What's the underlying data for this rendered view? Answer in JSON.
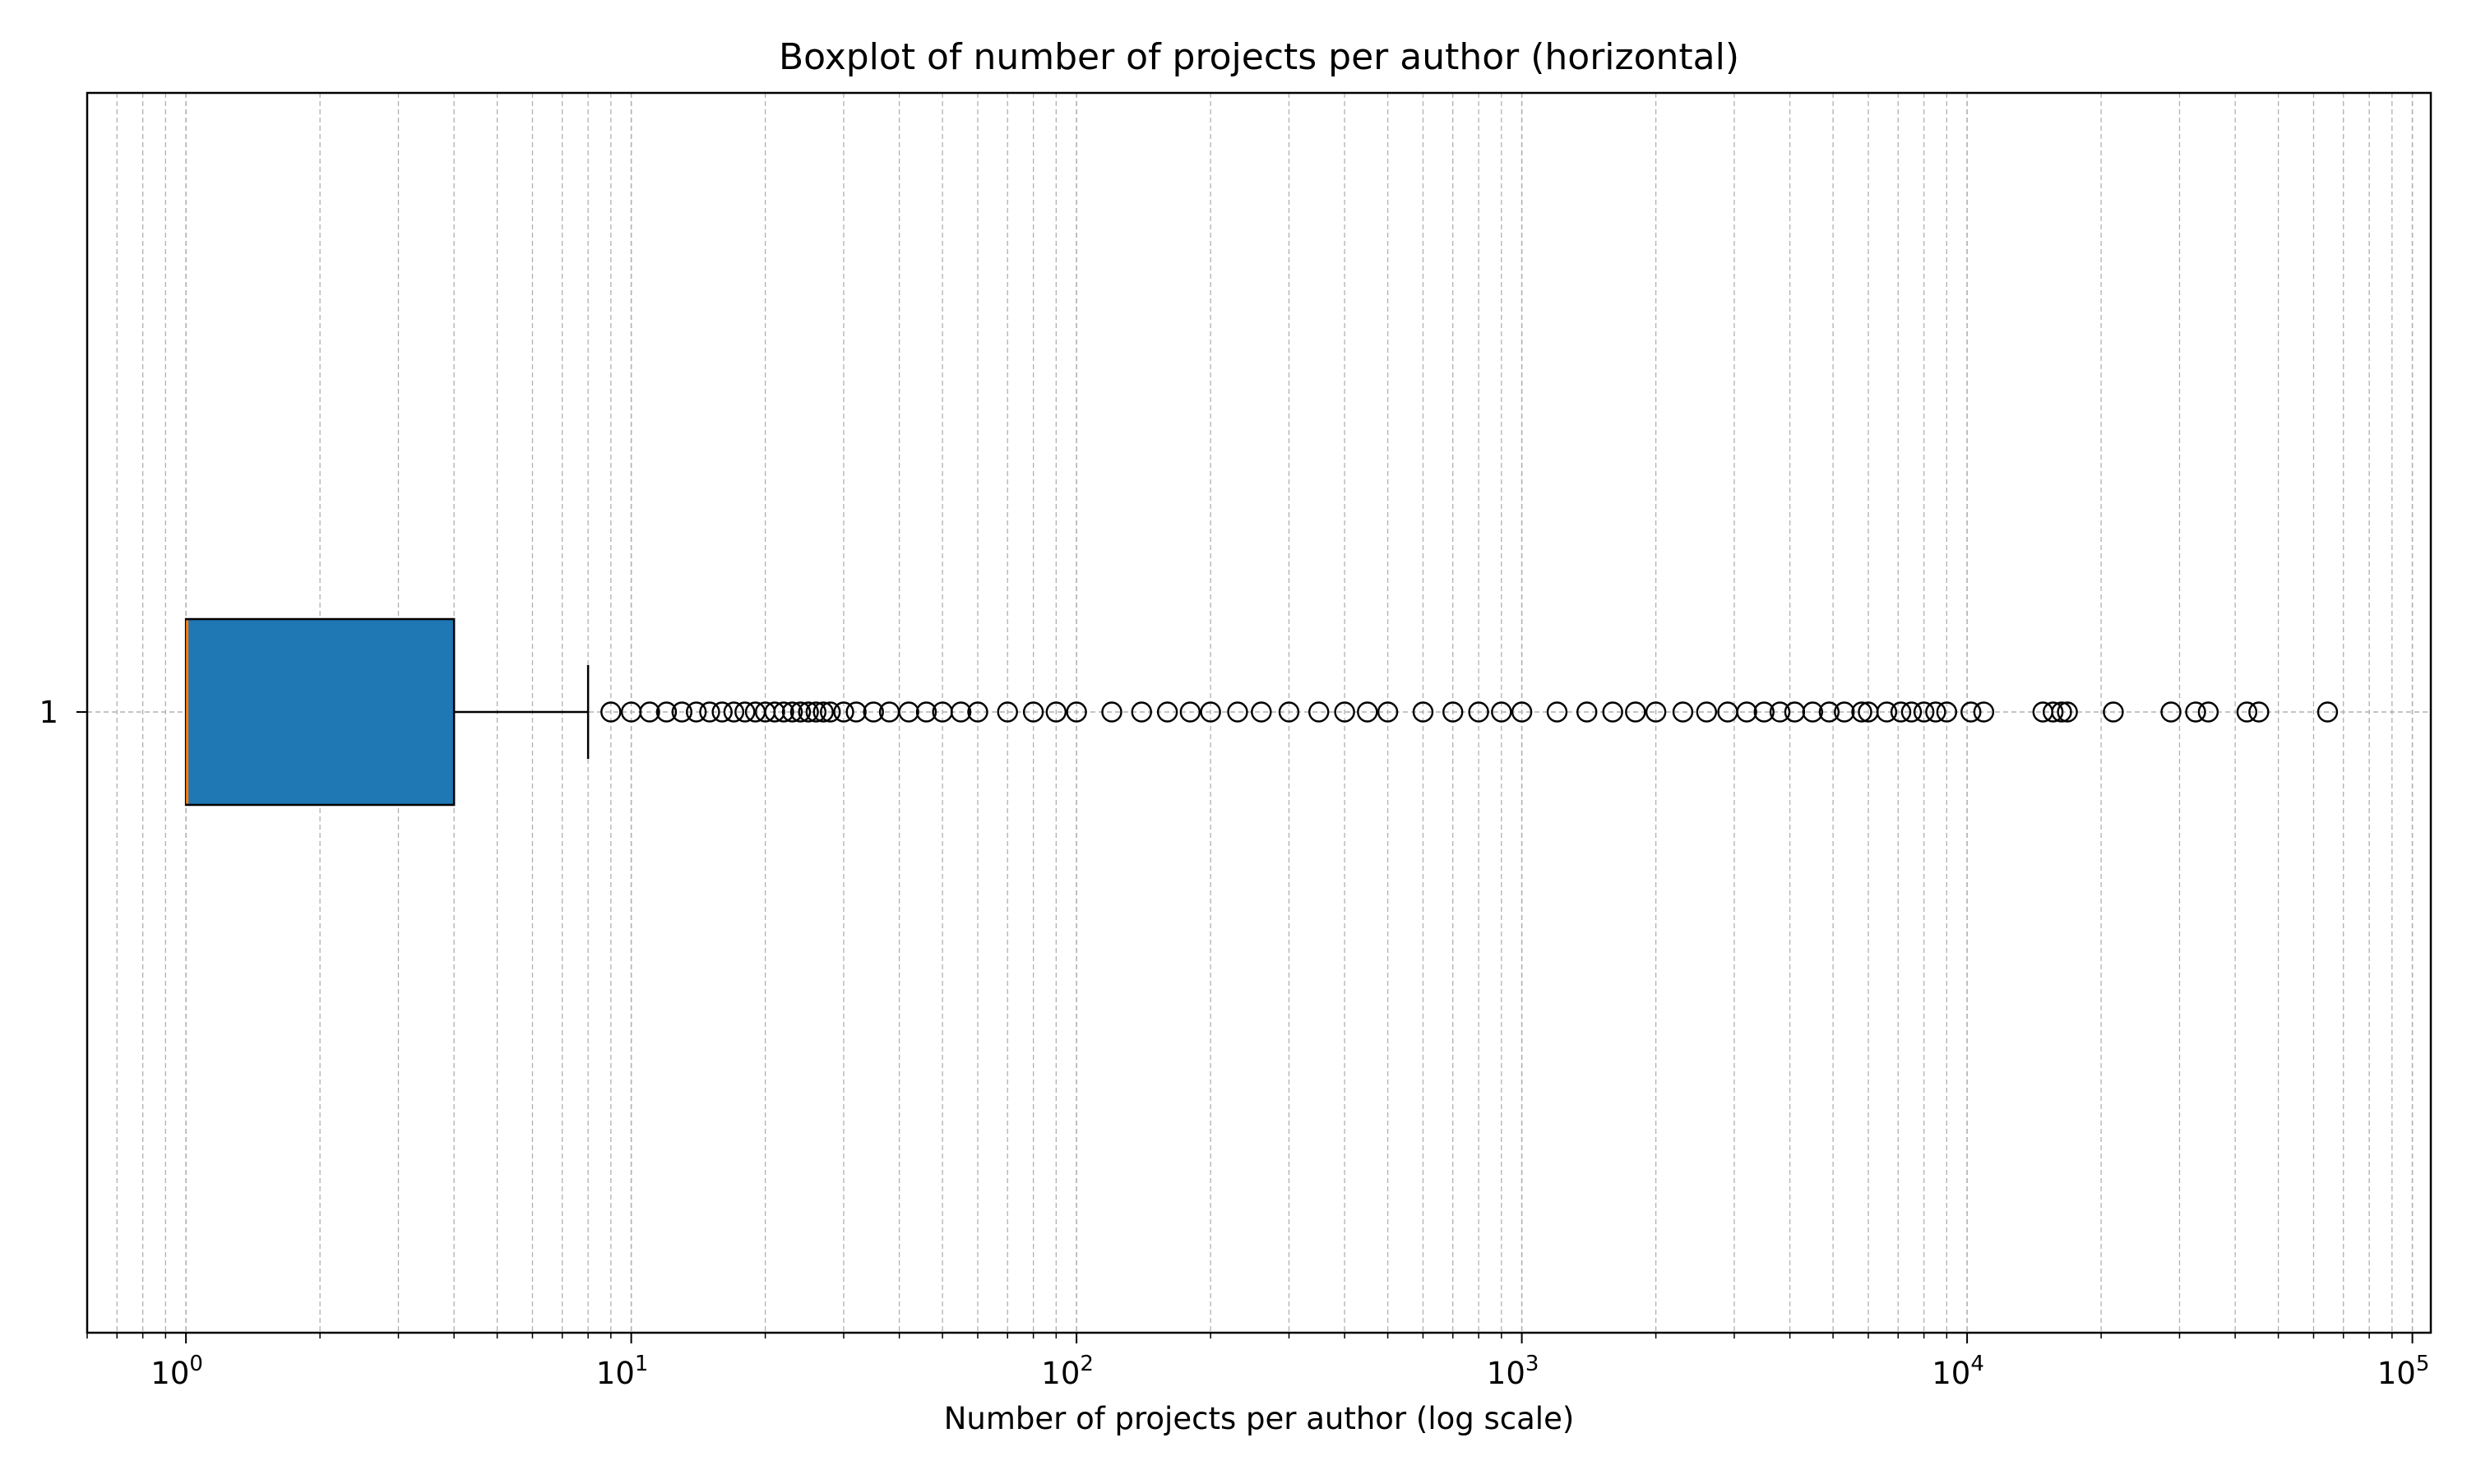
{
  "chart_data": {
    "type": "boxplot",
    "orientation": "horizontal",
    "title": "Boxplot of number of projects per author (horizontal)",
    "xlabel": "Number of projects per author (log scale)",
    "ylabel": "",
    "x_scale": "log",
    "xlim": [
      0.6,
      110000
    ],
    "grid": true,
    "x_ticks": [
      {
        "base": "10",
        "exp": "0"
      },
      {
        "base": "10",
        "exp": "1"
      },
      {
        "base": "10",
        "exp": "2"
      },
      {
        "base": "10",
        "exp": "3"
      },
      {
        "base": "10",
        "exp": "4"
      },
      {
        "base": "10",
        "exp": "5"
      }
    ],
    "categories": [
      "1"
    ],
    "box": {
      "q1": 1,
      "median": 1,
      "q3": 4,
      "whisker_low": 1,
      "whisker_high": 8
    },
    "outliers": [
      9,
      10,
      11,
      12,
      13,
      14,
      15,
      16,
      17,
      18,
      19,
      20,
      21,
      22,
      23,
      24,
      25,
      26,
      27,
      28,
      30,
      32,
      35,
      38,
      42,
      46,
      50,
      55,
      60,
      70,
      80,
      90,
      100,
      120,
      140,
      160,
      180,
      200,
      230,
      260,
      300,
      350,
      400,
      450,
      500,
      600,
      700,
      800,
      900,
      1000,
      1200,
      1400,
      1600,
      1800,
      2000,
      2300,
      2600,
      2900,
      3200,
      3500,
      3800,
      4100,
      4500,
      4900,
      5300,
      5800,
      6000,
      6600,
      7100,
      7500,
      8000,
      8500,
      9000,
      10200,
      10900,
      14800,
      15600,
      16300,
      16800,
      21300,
      28700,
      32600,
      34800,
      42500,
      45200,
      64500
    ],
    "colors": {
      "box_fill": "#1f77b4",
      "median_line": "#ff7f0e",
      "grid": "#b0b0b0"
    }
  }
}
